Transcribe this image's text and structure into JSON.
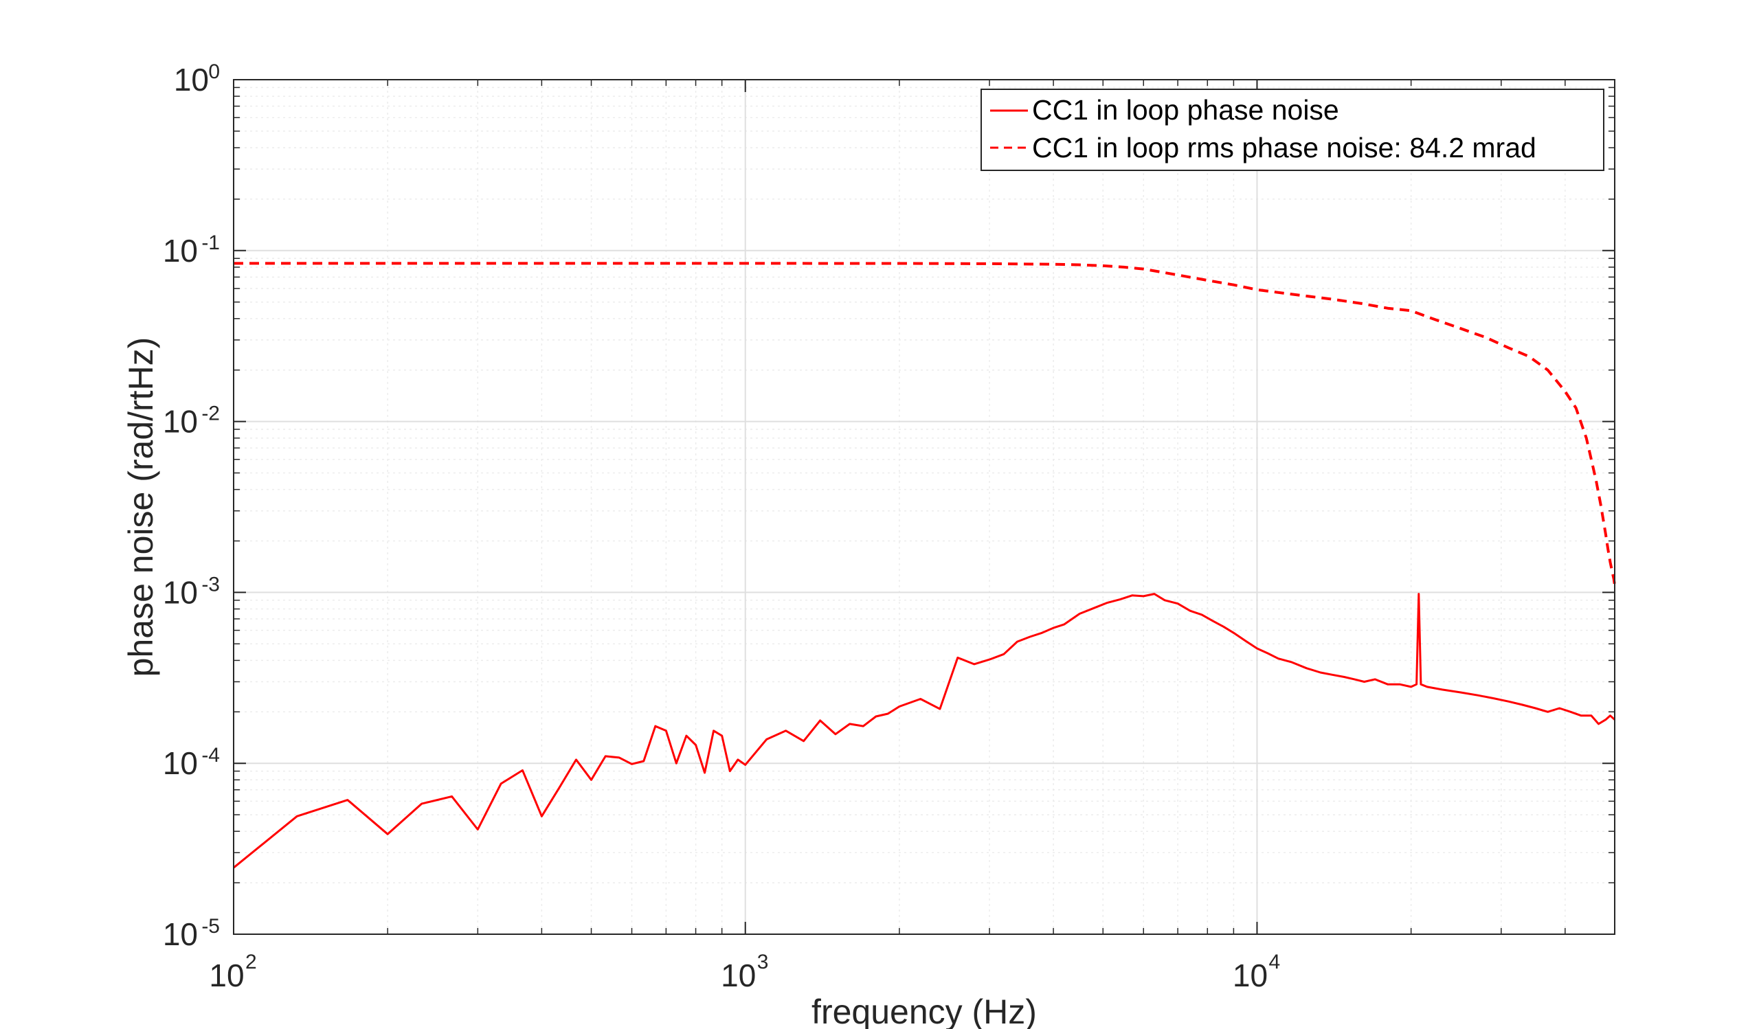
{
  "chart_data": {
    "type": "line",
    "title": "",
    "xlabel": "frequency (Hz)",
    "ylabel": "phase noise (rad/rtHz)",
    "xscale": "log",
    "yscale": "log",
    "xlim": [
      100,
      50000
    ],
    "ylim": [
      1e-05,
      1
    ],
    "grid": true,
    "minor_grid": true,
    "legend_position": "top-right",
    "x_ticks": [
      {
        "value": 100,
        "base": "10",
        "exp": "2"
      },
      {
        "value": 1000,
        "base": "10",
        "exp": "3"
      },
      {
        "value": 10000,
        "base": "10",
        "exp": "4"
      }
    ],
    "y_ticks": [
      {
        "value": 1,
        "base": "10",
        "exp": "0"
      },
      {
        "value": 0.1,
        "base": "10",
        "exp": "-1"
      },
      {
        "value": 0.01,
        "base": "10",
        "exp": "-2"
      },
      {
        "value": 0.001,
        "base": "10",
        "exp": "-3"
      },
      {
        "value": 0.0001,
        "base": "10",
        "exp": "-4"
      },
      {
        "value": 1e-05,
        "base": "10",
        "exp": "-5"
      }
    ],
    "series": [
      {
        "name": "CC1 in loop phase noise",
        "color": "#ff0000",
        "style": "solid",
        "x": [
          100,
          133,
          167,
          200,
          233,
          267,
          300,
          333,
          367,
          400,
          433,
          467,
          500,
          533,
          567,
          600,
          633,
          667,
          700,
          733,
          767,
          800,
          833,
          867,
          900,
          933,
          967,
          1000,
          1100,
          1200,
          1300,
          1400,
          1500,
          1600,
          1700,
          1800,
          1900,
          2000,
          2200,
          2400,
          2600,
          2800,
          3000,
          3200,
          3400,
          3600,
          3800,
          4000,
          4200,
          4500,
          4800,
          5100,
          5400,
          5700,
          6000,
          6300,
          6600,
          7000,
          7400,
          7800,
          8200,
          8600,
          9000,
          9500,
          10000,
          10500,
          11000,
          11700,
          12500,
          13300,
          14000,
          14800,
          15500,
          16200,
          17000,
          18000,
          19000,
          20000,
          20500,
          20700,
          20900,
          21500,
          23000,
          25000,
          27000,
          29000,
          31000,
          33000,
          35000,
          37000,
          39000,
          41000,
          43000,
          45000,
          46500,
          48000,
          49000,
          50000
        ],
        "y": [
          2.45e-05,
          4.9e-05,
          6.1e-05,
          3.85e-05,
          5.8e-05,
          6.4e-05,
          4.1e-05,
          7.6e-05,
          9.1e-05,
          4.9e-05,
          7.2e-05,
          0.000105,
          8e-05,
          0.00011,
          0.000108,
          9.9e-05,
          0.000103,
          0.000165,
          0.000155,
          0.0001,
          0.000145,
          0.000128,
          8.8e-05,
          0.000155,
          0.000145,
          9e-05,
          0.000105,
          9.8e-05,
          0.000138,
          0.000155,
          0.000135,
          0.000178,
          0.000148,
          0.00017,
          0.000165,
          0.000188,
          0.000195,
          0.000215,
          0.000238,
          0.000208,
          0.000415,
          0.00038,
          0.000405,
          0.000435,
          0.000515,
          0.00055,
          0.00058,
          0.00062,
          0.00065,
          0.00075,
          0.00081,
          0.00087,
          0.00091,
          0.00096,
          0.00095,
          0.00098,
          0.0009,
          0.00086,
          0.00078,
          0.00074,
          0.00068,
          0.00063,
          0.00058,
          0.00052,
          0.00047,
          0.00044,
          0.00041,
          0.00039,
          0.00036,
          0.00034,
          0.00033,
          0.00032,
          0.00031,
          0.0003,
          0.00031,
          0.00029,
          0.00029,
          0.00028,
          0.00029,
          0.00098,
          0.00029,
          0.00028,
          0.00027,
          0.00026,
          0.00025,
          0.00024,
          0.00023,
          0.00022,
          0.00021,
          0.0002,
          0.00021,
          0.0002,
          0.00019,
          0.00019,
          0.00017,
          0.00018,
          0.00019,
          0.00018
        ]
      },
      {
        "name": "CC1 in loop rms phase noise: 84.2 mrad",
        "color": "#ff0000",
        "style": "dashed",
        "x": [
          100,
          500,
          1000,
          2000,
          3000,
          4000,
          4500,
          5000,
          5500,
          6000,
          7000,
          8000,
          9000,
          10000,
          12000,
          14000,
          16000,
          18000,
          20000,
          22000,
          25000,
          28000,
          31000,
          34000,
          37000,
          40000,
          42000,
          44000,
          45000,
          46000,
          47000,
          48000,
          48500,
          49000,
          49500,
          49800,
          50000
        ],
        "y": [
          0.0842,
          0.0842,
          0.0842,
          0.0841,
          0.0838,
          0.0832,
          0.0826,
          0.0815,
          0.08,
          0.078,
          0.072,
          0.067,
          0.063,
          0.059,
          0.055,
          0.052,
          0.049,
          0.046,
          0.0445,
          0.04,
          0.035,
          0.031,
          0.027,
          0.024,
          0.02,
          0.015,
          0.012,
          0.008,
          0.006,
          0.0045,
          0.0032,
          0.0022,
          0.0018,
          0.0015,
          0.0013,
          0.0012,
          0.0011
        ]
      }
    ]
  }
}
